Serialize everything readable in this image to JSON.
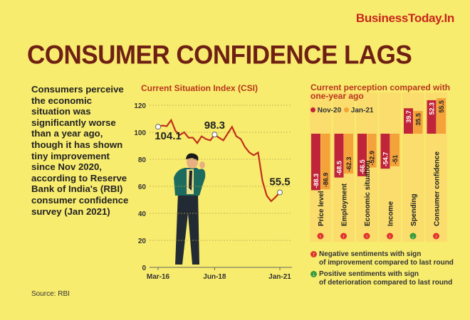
{
  "brand": "BusinessToday.In",
  "title": "CONSUMER CONFIDENCE LAGS",
  "description": "Consumers perceive the economic situation was significantly worse than a year ago, though it has shown tiny improvement since Nov 2020, according to Reserve Bank of India's (RBI) consumer confidence survey (Jan 2021)",
  "source": "Source: RBI",
  "colors": {
    "background": "#f8ec6e",
    "line": "#c0301c",
    "nov20": "#c0243a",
    "jan21": "#f4a23a",
    "up_icon": "#e0342a",
    "down_icon": "#3a9a3a"
  },
  "chart_data": [
    {
      "type": "line",
      "title": "Current Situation Index (CSI)",
      "x_ticks": [
        "Mar-16",
        "Jun-18",
        "Jan-21"
      ],
      "ylim": [
        0,
        120
      ],
      "y_ticks": [
        0,
        20,
        40,
        60,
        80,
        100,
        120
      ],
      "grid": true,
      "values": [
        104.1,
        105,
        104.5,
        109,
        101,
        98,
        100,
        96,
        96,
        92,
        97,
        95,
        94,
        98.3,
        96,
        94,
        99,
        104,
        97,
        95,
        89,
        85,
        83,
        85,
        64,
        53,
        49,
        52,
        55.5
      ],
      "annotations": [
        {
          "label": "104.1",
          "value": 104.1,
          "at": "Mar-16"
        },
        {
          "label": "98.3",
          "value": 98.3,
          "at": "Jun-18"
        },
        {
          "label": "55.5",
          "value": 55.5,
          "at": "Jan-21"
        }
      ]
    },
    {
      "type": "bar",
      "title": "Current perception compared with one-year ago",
      "categories": [
        "Price level",
        "Employment",
        "Economic situation",
        "Income",
        "Spending",
        "Consumer confidence"
      ],
      "series": [
        {
          "name": "Nov-20",
          "values": [
            -88.3,
            -68.5,
            -66.5,
            -54.7,
            39.7,
            52.3
          ]
        },
        {
          "name": "Jan-21",
          "values": [
            -86.9,
            -62.3,
            -52.9,
            -51,
            35.5,
            55.5
          ]
        }
      ],
      "icons": [
        "up",
        "up",
        "up",
        "up",
        "down",
        "up"
      ],
      "legend": "top-left"
    }
  ],
  "notes": [
    {
      "icon": "up",
      "text1": "Negative sentiments with sign",
      "text2": "of improvement compared to last round"
    },
    {
      "icon": "down",
      "text1": "Positive sentiments with sign",
      "text2": "of deterioration compared to last round"
    }
  ]
}
